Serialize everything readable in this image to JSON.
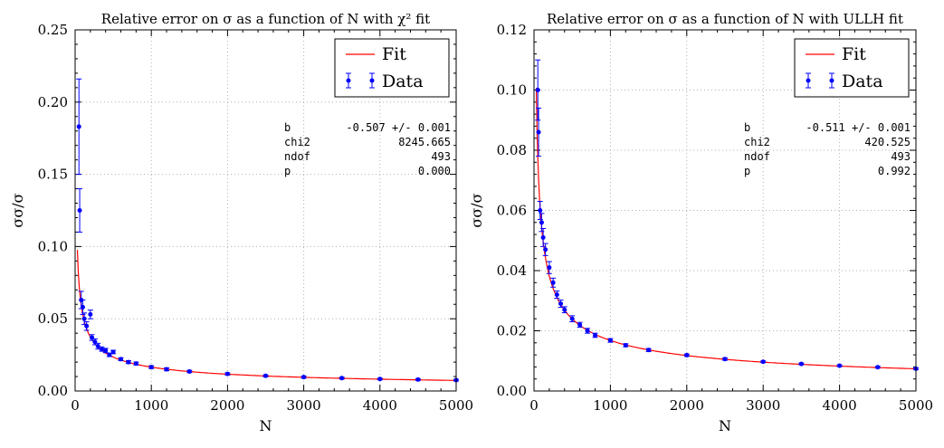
{
  "chart_data": [
    {
      "type": "scatter",
      "title": "Relative error on σ as a function of N with χ² fit",
      "xlabel": "N",
      "ylabel": "σσ/σ",
      "xlim": [
        0,
        5000
      ],
      "ylim": [
        0,
        0.25
      ],
      "xticks": [
        "0",
        "1000",
        "2000",
        "3000",
        "4000",
        "5000"
      ],
      "yticks": [
        "0.00",
        "0.05",
        "0.10",
        "0.15",
        "0.20",
        "0.25"
      ],
      "grid": true,
      "legend": [
        "Fit",
        "Data"
      ],
      "legend_position": "top-right",
      "fit": {
        "name": "Fit",
        "color": "#ff0000",
        "amplitude": 0.548,
        "exponent": -0.507
      },
      "data_series": {
        "name": "Data",
        "color": "#0000ff",
        "points": [
          {
            "x": 50,
            "y": 0.183,
            "err": 0.033
          },
          {
            "x": 60,
            "y": 0.125,
            "err": 0.015
          },
          {
            "x": 80,
            "y": 0.063,
            "err": 0.006
          },
          {
            "x": 100,
            "y": 0.058,
            "err": 0.005
          },
          {
            "x": 120,
            "y": 0.05,
            "err": 0.004
          },
          {
            "x": 150,
            "y": 0.045,
            "err": 0.003
          },
          {
            "x": 200,
            "y": 0.053,
            "err": 0.003
          },
          {
            "x": 220,
            "y": 0.037,
            "err": 0.002
          },
          {
            "x": 260,
            "y": 0.034,
            "err": 0.002
          },
          {
            "x": 300,
            "y": 0.031,
            "err": 0.002
          },
          {
            "x": 350,
            "y": 0.029,
            "err": 0.0015
          },
          {
            "x": 400,
            "y": 0.028,
            "err": 0.0015
          },
          {
            "x": 450,
            "y": 0.025,
            "err": 0.0012
          },
          {
            "x": 500,
            "y": 0.027,
            "err": 0.0012
          },
          {
            "x": 600,
            "y": 0.022,
            "err": 0.001
          },
          {
            "x": 700,
            "y": 0.02,
            "err": 0.001
          },
          {
            "x": 800,
            "y": 0.019,
            "err": 0.001
          },
          {
            "x": 1000,
            "y": 0.0165,
            "err": 0.001
          },
          {
            "x": 1200,
            "y": 0.015,
            "err": 0.001
          },
          {
            "x": 1500,
            "y": 0.0135,
            "err": 0.0008
          },
          {
            "x": 2000,
            "y": 0.0118,
            "err": 0.0008
          },
          {
            "x": 2500,
            "y": 0.0105,
            "err": 0.0007
          },
          {
            "x": 3000,
            "y": 0.0096,
            "err": 0.0007
          },
          {
            "x": 3500,
            "y": 0.0089,
            "err": 0.0006
          },
          {
            "x": 4000,
            "y": 0.0083,
            "err": 0.0006
          },
          {
            "x": 4500,
            "y": 0.0079,
            "err": 0.0006
          },
          {
            "x": 5000,
            "y": 0.0075,
            "err": 0.0006
          }
        ]
      },
      "stats": [
        {
          "label": "b",
          "value": "-0.507 +/- 0.001"
        },
        {
          "label": "chi2",
          "value": "8245.665"
        },
        {
          "label": "ndof",
          "value": "493"
        },
        {
          "label": "p",
          "value": "0.000"
        }
      ]
    },
    {
      "type": "scatter",
      "title": "Relative error on σ as a function of N with ULLH fit",
      "xlabel": "N",
      "ylabel": "σσ/σ",
      "xlim": [
        0,
        5000
      ],
      "ylim": [
        0,
        0.12
      ],
      "xticks": [
        "0",
        "1000",
        "2000",
        "3000",
        "4000",
        "5000"
      ],
      "yticks": [
        "0.00",
        "0.02",
        "0.04",
        "0.06",
        "0.08",
        "0.10",
        "0.12"
      ],
      "grid": true,
      "legend": [
        "Fit",
        "Data"
      ],
      "legend_position": "top-right",
      "fit": {
        "name": "Fit",
        "color": "#ff0000",
        "amplitude": 0.573,
        "exponent": -0.511
      },
      "data_series": {
        "name": "Data",
        "color": "#0000ff",
        "points": [
          {
            "x": 50,
            "y": 0.1,
            "err": 0.01
          },
          {
            "x": 60,
            "y": 0.086,
            "err": 0.008
          },
          {
            "x": 80,
            "y": 0.06,
            "err": 0.003
          },
          {
            "x": 100,
            "y": 0.056,
            "err": 0.003
          },
          {
            "x": 120,
            "y": 0.051,
            "err": 0.003
          },
          {
            "x": 150,
            "y": 0.047,
            "err": 0.002
          },
          {
            "x": 200,
            "y": 0.041,
            "err": 0.002
          },
          {
            "x": 250,
            "y": 0.036,
            "err": 0.0015
          },
          {
            "x": 300,
            "y": 0.032,
            "err": 0.0012
          },
          {
            "x": 350,
            "y": 0.029,
            "err": 0.0012
          },
          {
            "x": 400,
            "y": 0.027,
            "err": 0.001
          },
          {
            "x": 500,
            "y": 0.024,
            "err": 0.001
          },
          {
            "x": 600,
            "y": 0.022,
            "err": 0.0008
          },
          {
            "x": 700,
            "y": 0.02,
            "err": 0.0008
          },
          {
            "x": 800,
            "y": 0.0185,
            "err": 0.0007
          },
          {
            "x": 1000,
            "y": 0.0168,
            "err": 0.0006
          },
          {
            "x": 1200,
            "y": 0.0152,
            "err": 0.0005
          },
          {
            "x": 1500,
            "y": 0.0136,
            "err": 0.0005
          },
          {
            "x": 2000,
            "y": 0.0119,
            "err": 0.0004
          },
          {
            "x": 2500,
            "y": 0.0106,
            "err": 0.0004
          },
          {
            "x": 3000,
            "y": 0.0097,
            "err": 0.0003
          },
          {
            "x": 3500,
            "y": 0.009,
            "err": 0.0003
          },
          {
            "x": 4000,
            "y": 0.0084,
            "err": 0.0003
          },
          {
            "x": 4500,
            "y": 0.0079,
            "err": 0.0003
          },
          {
            "x": 5000,
            "y": 0.0074,
            "err": 0.0003
          }
        ]
      },
      "stats": [
        {
          "label": "b",
          "value": "-0.511 +/- 0.001"
        },
        {
          "label": "chi2",
          "value": "420.525"
        },
        {
          "label": "ndof",
          "value": "493"
        },
        {
          "label": "p",
          "value": "0.992"
        }
      ]
    }
  ]
}
